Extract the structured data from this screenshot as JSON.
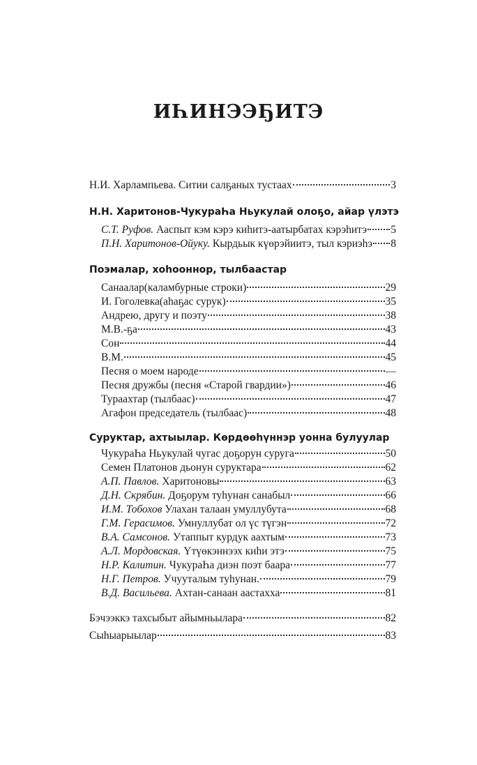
{
  "title": "ИҺИНЭЭҔИТЭ",
  "intro": {
    "title": "Н.И. Харлампьева. Ситии салҕаных тустаах",
    "page": "3"
  },
  "sections": [
    {
      "heading": "Н.Н. Харитонов-ЧукураҺа Ньукулай олоҕо, айар үлэтэ",
      "items": [
        {
          "author": "С.Т. Руфов.",
          "title": "Ааспыт кэм кэрэ киһитэ-аатырбатах кэрэһитэ",
          "page": "5"
        },
        {
          "author": "П.Н. Харитонов-Ойуку.",
          "title": "Кырдьык күөрэйиитэ, тыл кэриэһэ",
          "page": "8"
        }
      ]
    },
    {
      "heading": "Поэмалар, хоһооннор, тылбаастар",
      "items": [
        {
          "title": "Санаалар(каламбурные строки)",
          "page": "29"
        },
        {
          "title": "И. Гоголевка(аһаҕас сурук)",
          "page": "35"
        },
        {
          "title": "Андрею, другу и поэту",
          "page": "38"
        },
        {
          "title": "М.В.-ҕа",
          "page": "43"
        },
        {
          "title": "Сон",
          "page": "44"
        },
        {
          "title": "В.М.",
          "page": "45"
        },
        {
          "title": "Песня о моем народе",
          "page": "—"
        },
        {
          "title": "Песня дружбы (песня «Старой гвардии»)",
          "page": "46"
        },
        {
          "title": "Тураахтар (тылбаас)",
          "page": "47"
        },
        {
          "title": "Агафон председатель (тылбаас)",
          "page": "48"
        }
      ]
    },
    {
      "heading": "Суруктар, ахтыылар. Көрдөөһүннэр уонна булуулар",
      "items": [
        {
          "title": "ЧукураҺа Ньукулай чугас доҕорун суруга",
          "page": "50"
        },
        {
          "title": "Семен Платонов дьонун суруктара",
          "page": "62"
        },
        {
          "author": "А.П. Павлов.",
          "title": "Харитоновы",
          "page": "63"
        },
        {
          "author": "Д.Н. Скрябин.",
          "title": "Доҕорум туһунан санабыл",
          "page": "66"
        },
        {
          "author": "И.М. Тобохов",
          "title": "Улахан талаан умуллубута",
          "page": "68"
        },
        {
          "author": "Г.М. Герасимов.",
          "title": "Умнуллубат ол үс түгэн",
          "page": "72"
        },
        {
          "author": "В.А. Самсонов.",
          "title": "Утаппыт курдук аахтым",
          "page": "73"
        },
        {
          "author": "А.Л. Мордовская.",
          "title": "Үтүөкэннээх киһи этэ",
          "page": "75"
        },
        {
          "author": "Н.Р. Калитин.",
          "title": "ЧукураҺа диэн поэт баара",
          "page": "77"
        },
        {
          "author": "Н.Г. Петров.",
          "title": "Учууталым туһунан.",
          "page": "79"
        },
        {
          "author": "В.Д. Васильева.",
          "title": "Ахтан-санаан аастахха",
          "page": "81"
        }
      ]
    }
  ],
  "outro": [
    {
      "title": "Бэчээккэ тахсыбыт айымньылара",
      "page": "82"
    },
    {
      "title": "Сыһыарыылар",
      "page": "83"
    }
  ]
}
